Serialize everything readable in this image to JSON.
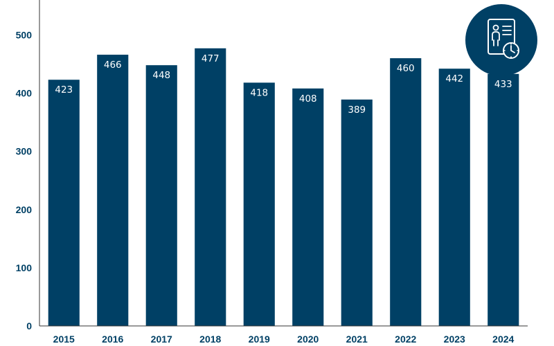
{
  "colors": {
    "bar": "#004065",
    "text": "#004065",
    "axis": "#333333",
    "bar_label": "#ffffff",
    "badge": "#004065"
  },
  "badge": {
    "icon": "user-profile-clock-icon"
  },
  "chart_data": {
    "type": "bar",
    "title": "",
    "xlabel": "",
    "ylabel": "",
    "categories": [
      "2015",
      "2016",
      "2017",
      "2018",
      "2019",
      "2020",
      "2021",
      "2022",
      "2023",
      "2024"
    ],
    "values": [
      423,
      466,
      448,
      477,
      418,
      408,
      389,
      460,
      442,
      433
    ],
    "ylim": [
      0,
      560
    ],
    "yticks": [
      0,
      100,
      200,
      300,
      400,
      500
    ],
    "data_labels": true,
    "grid": false,
    "legend": "none"
  }
}
